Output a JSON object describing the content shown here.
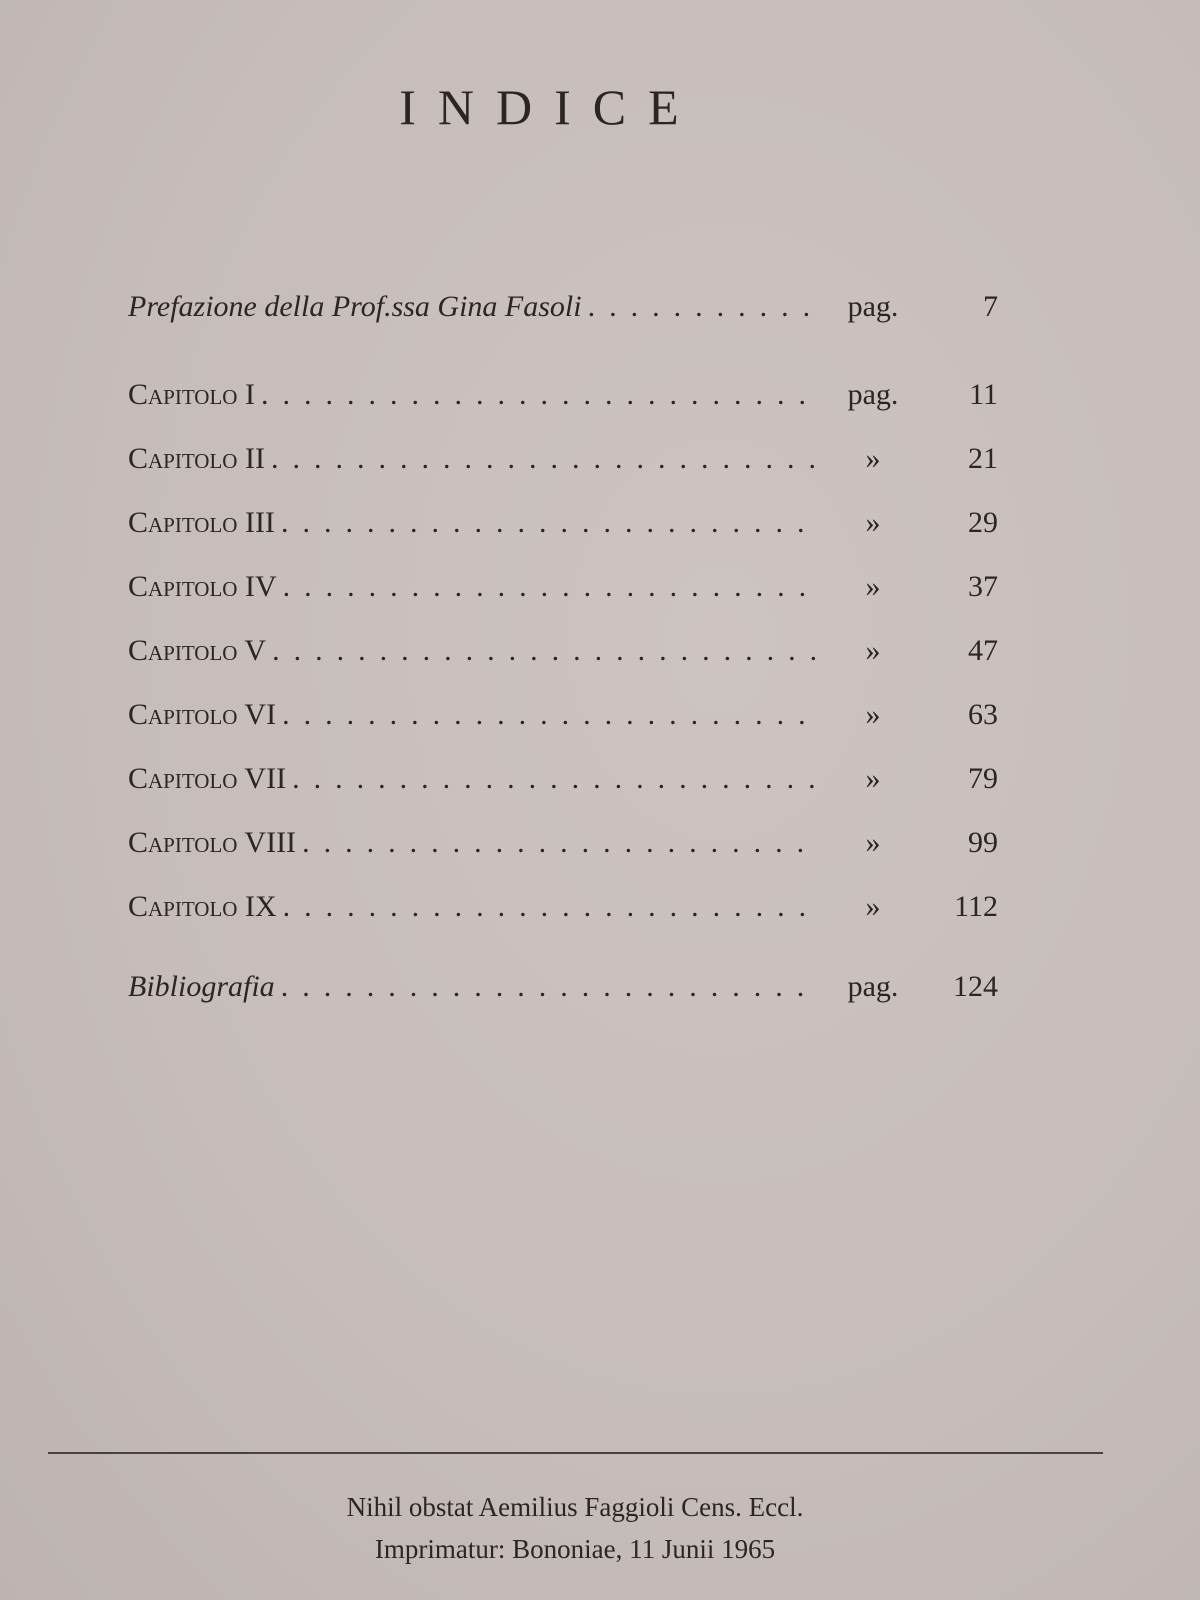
{
  "title": "INDICE",
  "entries": [
    {
      "label": "Prefazione della Prof.ssa Gina Fasoli",
      "style": "italic",
      "ref": "pag.",
      "page": "7"
    },
    {
      "label": "Capitolo I",
      "style": "smallcaps",
      "ref": "pag.",
      "page": "11"
    },
    {
      "label": "Capitolo II",
      "style": "smallcaps",
      "ref": "»",
      "page": "21"
    },
    {
      "label": "Capitolo III",
      "style": "smallcaps",
      "ref": "»",
      "page": "29"
    },
    {
      "label": "Capitolo IV",
      "style": "smallcaps",
      "ref": "»",
      "page": "37"
    },
    {
      "label": "Capitolo V",
      "style": "smallcaps",
      "ref": "»",
      "page": "47"
    },
    {
      "label": "Capitolo VI",
      "style": "smallcaps",
      "ref": "»",
      "page": "63"
    },
    {
      "label": "Capitolo VII",
      "style": "smallcaps",
      "ref": "»",
      "page": "79"
    },
    {
      "label": "Capitolo VIII",
      "style": "smallcaps",
      "ref": "»",
      "page": "99"
    },
    {
      "label": "Capitolo IX",
      "style": "smallcaps",
      "ref": "»",
      "page": "112"
    },
    {
      "label": "Bibliografia",
      "style": "italic",
      "ref": "pag.",
      "page": "124"
    }
  ],
  "footer": {
    "line1": "Nihil obstat Aemilius Faggioli Cens. Eccl.",
    "line2": "Imprimatur: Bononiae, 11 Junii 1965"
  }
}
